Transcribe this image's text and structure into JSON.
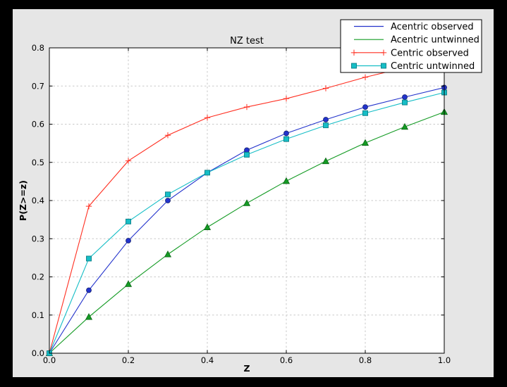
{
  "window": {
    "outer_background": "#000000",
    "figure_background": "#e6e6e6",
    "plot_background": "#ffffff",
    "grid_color": "#c9c9c9",
    "spine_color": "#000000"
  },
  "chart_data": {
    "type": "line",
    "title": "NZ test",
    "xlabel": "Z",
    "ylabel": "P(Z>=z)",
    "xlim": [
      0.0,
      1.0
    ],
    "ylim": [
      0.0,
      0.8
    ],
    "grid": true,
    "grid_style": "dashed",
    "legend_position": "upper right",
    "xticks": {
      "values": [
        0.0,
        0.2,
        0.4,
        0.6,
        0.8,
        1.0
      ],
      "labels": [
        "0.0",
        "0.2",
        "0.4",
        "0.6",
        "0.8",
        "1.0"
      ]
    },
    "yticks": {
      "values": [
        0.0,
        0.1,
        0.2,
        0.3,
        0.4,
        0.5,
        0.6,
        0.7,
        0.8
      ],
      "labels": [
        "0.0",
        "0.1",
        "0.2",
        "0.3",
        "0.4",
        "0.5",
        "0.6",
        "0.7",
        "0.8"
      ]
    },
    "x": [
      0.0,
      0.1,
      0.2,
      0.3,
      0.4,
      0.5,
      0.6,
      0.7,
      0.8,
      0.9,
      1.0
    ],
    "series": [
      {
        "name": "Acentric observed",
        "color": "#2333cc",
        "marker": "circle",
        "marker_edge": "#13206e",
        "values": [
          0.0,
          0.165,
          0.295,
          0.4,
          0.473,
          0.532,
          0.576,
          0.612,
          0.645,
          0.671,
          0.696
        ]
      },
      {
        "name": "Acentric untwinned",
        "color": "#149b24",
        "marker": "triangle",
        "marker_edge": "#0a6414",
        "values": [
          0.0,
          0.095,
          0.181,
          0.259,
          0.33,
          0.393,
          0.451,
          0.503,
          0.551,
          0.593,
          0.632
        ]
      },
      {
        "name": "Centric observed",
        "color": "#ff2f21",
        "marker": "plus",
        "marker_edge": "#ff2f21",
        "values": [
          0.0,
          0.385,
          0.504,
          0.571,
          0.617,
          0.645,
          0.667,
          0.694,
          0.723,
          0.748,
          0.771
        ]
      },
      {
        "name": "Centric untwinned",
        "color": "#16bec6",
        "marker": "square",
        "marker_edge": "#0b7d85",
        "values": [
          0.0,
          0.248,
          0.345,
          0.416,
          0.473,
          0.52,
          0.561,
          0.597,
          0.629,
          0.657,
          0.683
        ]
      }
    ]
  }
}
